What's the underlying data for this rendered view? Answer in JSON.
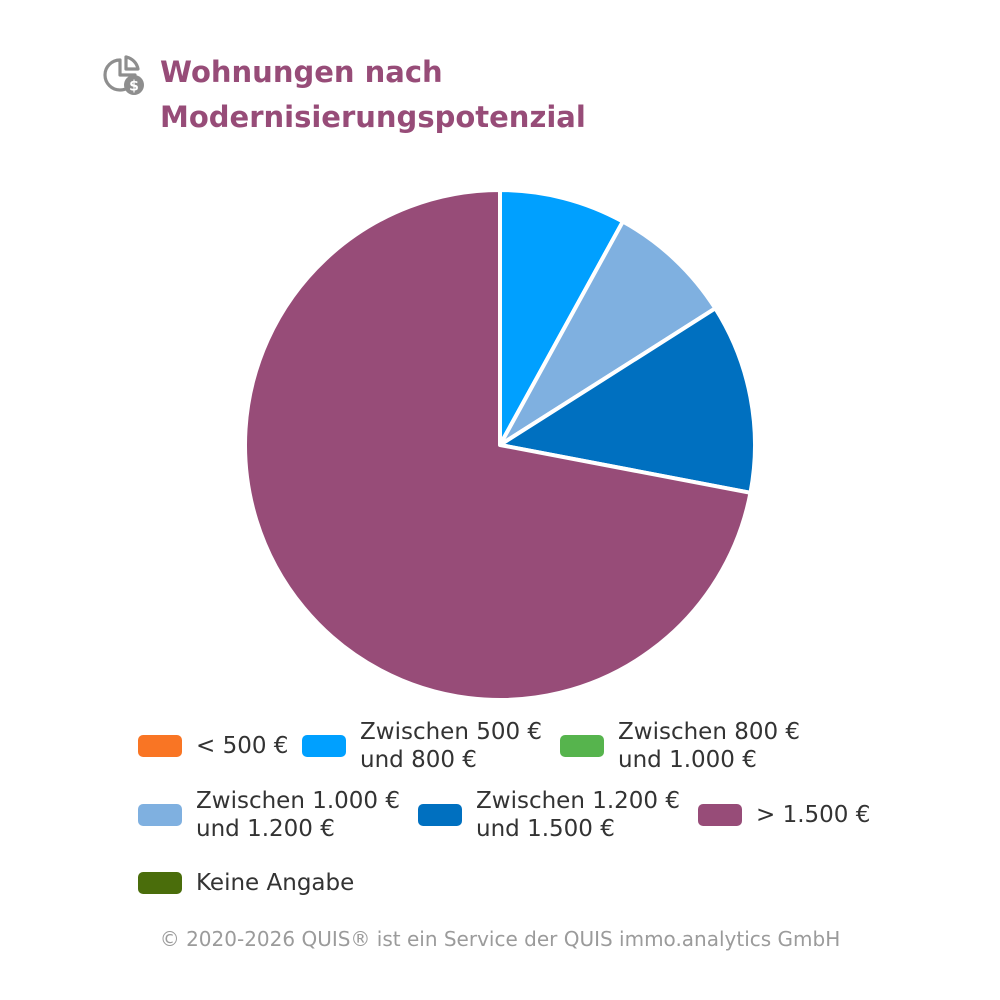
{
  "header": {
    "icon": "pie-chart-money-icon",
    "title": "Wohnungen nach\nModernisierungspotenzial"
  },
  "chart_data": {
    "type": "pie",
    "title": "Wohnungen nach Modernisierungspotenzial",
    "categories": [
      "< 500 €",
      "Zwischen 500 € und 800 €",
      "Zwischen 800 € und 1.000 €",
      "Zwischen 1.000 € und 1.200 €",
      "Zwischen 1.200 € und 1.500 €",
      "> 1.500 €",
      "Keine Angabe"
    ],
    "values": [
      0,
      8,
      0,
      8,
      12,
      72,
      0
    ],
    "colors": [
      "#f97524",
      "#00a0ff",
      "#56b44d",
      "#7fb0e0",
      "#0070c0",
      "#974c78",
      "#4a6d0b"
    ],
    "legend_position": "bottom"
  },
  "legend": {
    "items": [
      {
        "label": "< 500 €",
        "color": "#f97524"
      },
      {
        "label": "Zwischen 500 €\nund 800 €",
        "color": "#00a0ff"
      },
      {
        "label": "Zwischen 800 €\nund 1.000 €",
        "color": "#56b44d"
      },
      {
        "label": "Zwischen 1.000 €\nund 1.200 €",
        "color": "#7fb0e0"
      },
      {
        "label": "Zwischen 1.200 €\nund 1.500 €",
        "color": "#0070c0"
      },
      {
        "label": "> 1.500 €",
        "color": "#974c78"
      },
      {
        "label": "Keine Angabe",
        "color": "#4a6d0b"
      }
    ]
  },
  "footer": {
    "text": "© 2020-2026 QUIS® ist ein Service der QUIS immo.analytics GmbH"
  }
}
